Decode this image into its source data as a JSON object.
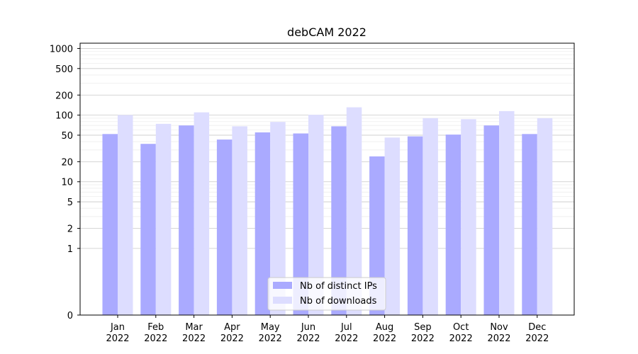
{
  "chart_data": {
    "type": "bar",
    "title": "debCAM 2022",
    "xlabel": "",
    "ylabel": "",
    "yscale": "symlog",
    "ylim": [
      0,
      1200
    ],
    "yticks": [
      0,
      1,
      2,
      5,
      10,
      20,
      50,
      100,
      200,
      500,
      1000
    ],
    "ytick_labels": [
      "0",
      "1",
      "2",
      "5",
      "10",
      "20",
      "50",
      "100",
      "200",
      "500",
      "1000"
    ],
    "grid": true,
    "legend_position": "bottom-center",
    "categories": [
      "Jan\n2022",
      "Feb\n2022",
      "Mar\n2022",
      "Apr\n2022",
      "May\n2022",
      "Jun\n2022",
      "Jul\n2022",
      "Aug\n2022",
      "Sep\n2022",
      "Oct\n2022",
      "Nov\n2022",
      "Dec\n2022"
    ],
    "series": [
      {
        "name": "Nb of distinct IPs",
        "color": "#aaaaff",
        "values": [
          52,
          37,
          70,
          43,
          55,
          53,
          68,
          24,
          48,
          51,
          70,
          52
        ]
      },
      {
        "name": "Nb of downloads",
        "color": "#ddddff",
        "values": [
          100,
          74,
          110,
          68,
          79,
          101,
          131,
          46,
          90,
          87,
          115,
          90
        ]
      }
    ]
  }
}
